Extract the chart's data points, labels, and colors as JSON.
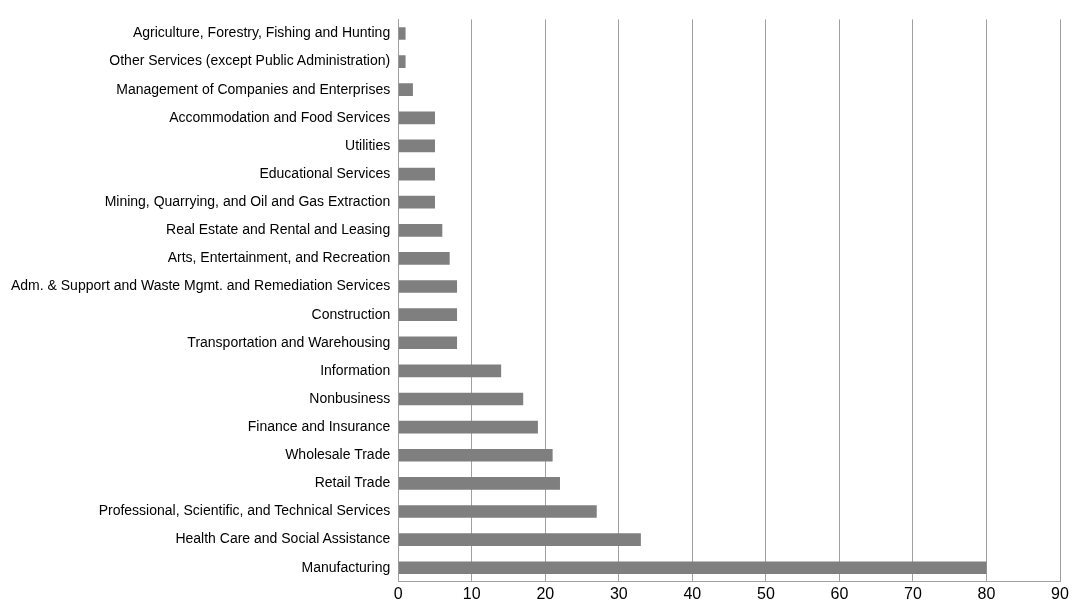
{
  "chart_data": {
    "type": "bar",
    "orientation": "horizontal",
    "categories": [
      "Agriculture, Forestry, Fishing and Hunting",
      "Other Services (except Public Administration)",
      "Management of Companies and Enterprises",
      "Accommodation and Food Services",
      "Utilities",
      "Educational Services",
      "Mining, Quarrying, and Oil and Gas Extraction",
      "Real Estate and Rental and Leasing",
      "Arts, Entertainment, and Recreation",
      "Adm. & Support and Waste Mgmt. and Remediation Services",
      "Construction",
      "Transportation and Warehousing",
      "Information",
      "Nonbusiness",
      "Finance and Insurance",
      "Wholesale Trade",
      "Retail Trade",
      "Professional, Scientific, and Technical Services",
      "Health Care and Social Assistance",
      "Manufacturing"
    ],
    "values": [
      1,
      1,
      2,
      5,
      5,
      5,
      5,
      6,
      7,
      8,
      8,
      8,
      14,
      17,
      19,
      21,
      22,
      27,
      33,
      80
    ],
    "color": "#7f7f7f",
    "xlim": [
      0,
      90
    ],
    "xticks": [
      0,
      10,
      20,
      30,
      40,
      50,
      60,
      70,
      80,
      90
    ],
    "grid": "x",
    "legend": false
  }
}
